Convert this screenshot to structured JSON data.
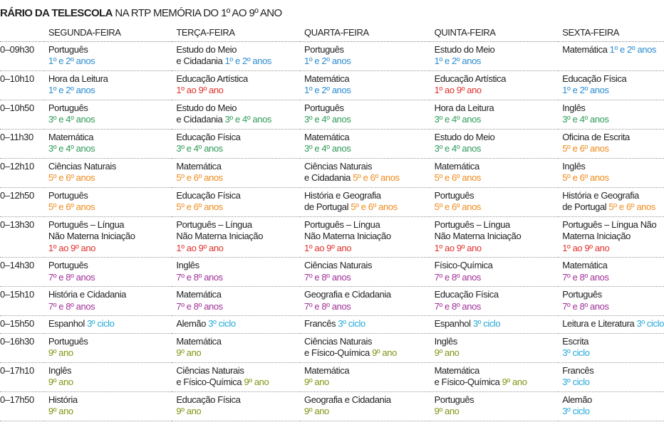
{
  "header": {
    "title_bold": "RÁRIO DA TELESCOLA",
    "title_rest": "NA RTP MEMÓRIA DO 1º AO 9º ANO"
  },
  "palette": {
    "blue": "#2a8bd0",
    "red": "#e0302a",
    "green": "#2e9a5a",
    "orange": "#ef8a1a",
    "purple": "#a0309a",
    "cyan": "#22a8d8",
    "olive": "#7f9410"
  },
  "table": {
    "columns": [
      "SEGUNDA-FEIRA",
      "TERÇA-FEIRA",
      "QUARTA-FEIRA",
      "QUINTA-FEIRA",
      "SEXTA-FEIRA"
    ],
    "rows": [
      {
        "time": "0–09h30",
        "cells": [
          {
            "l": [
              "Português"
            ],
            "g": "1º e 2º anos",
            "c": "blue",
            "i": false
          },
          {
            "l": [
              "Estudo do Meio",
              "e Cidadania"
            ],
            "g": "1º e 2º anos",
            "c": "blue",
            "i": true
          },
          {
            "l": [
              "Português"
            ],
            "g": "1º e 2º anos",
            "c": "blue",
            "i": false
          },
          {
            "l": [
              "Estudo do Meio"
            ],
            "g": "1º e 2º anos",
            "c": "blue",
            "i": false
          },
          {
            "l": [
              "Matemática"
            ],
            "g": "1º e 2º anos",
            "c": "blue",
            "i": true
          }
        ]
      },
      {
        "time": "0–10h10",
        "cells": [
          {
            "l": [
              "Hora da Leitura"
            ],
            "g": "1º e 2º anos",
            "c": "blue",
            "i": false
          },
          {
            "l": [
              "Educação Artística"
            ],
            "g": "1º ao 9º ano",
            "c": "red",
            "i": false
          },
          {
            "l": [
              "Matemática"
            ],
            "g": "1º e 2º anos",
            "c": "blue",
            "i": false
          },
          {
            "l": [
              "Educação Artística"
            ],
            "g": "1º ao 9º ano",
            "c": "red",
            "i": false
          },
          {
            "l": [
              "Educação Física"
            ],
            "g": "1º e 2º anos",
            "c": "blue",
            "i": false
          }
        ]
      },
      {
        "time": "0–10h50",
        "cells": [
          {
            "l": [
              "Português"
            ],
            "g": "3º e 4º anos",
            "c": "green",
            "i": false
          },
          {
            "l": [
              "Estudo do Meio",
              "e Cidadania"
            ],
            "g": "3º e 4º anos",
            "c": "green",
            "i": true
          },
          {
            "l": [
              "Português"
            ],
            "g": "3º e 4º anos",
            "c": "green",
            "i": false
          },
          {
            "l": [
              "Hora da Leitura"
            ],
            "g": "3º e 4º anos",
            "c": "green",
            "i": false
          },
          {
            "l": [
              "Inglês"
            ],
            "g": "3º e 4º anos",
            "c": "green",
            "i": false
          }
        ]
      },
      {
        "time": "0–11h30",
        "cells": [
          {
            "l": [
              "Matemática"
            ],
            "g": "3º e 4º anos",
            "c": "green",
            "i": false
          },
          {
            "l": [
              "Educação Física"
            ],
            "g": "3º e 4º anos",
            "c": "green",
            "i": false
          },
          {
            "l": [
              "Matemática"
            ],
            "g": "3º e 4º anos",
            "c": "green",
            "i": false
          },
          {
            "l": [
              "Estudo do Meio"
            ],
            "g": "3º e 4º anos",
            "c": "green",
            "i": false
          },
          {
            "l": [
              "Oficina de Escrita"
            ],
            "g": "5º e 6º anos",
            "c": "orange",
            "i": false
          }
        ]
      },
      {
        "time": "0–12h10",
        "cells": [
          {
            "l": [
              "Ciências Naturais"
            ],
            "g": "5º e 6º anos",
            "c": "orange",
            "i": false
          },
          {
            "l": [
              "Matemática"
            ],
            "g": "5º e 6º anos",
            "c": "orange",
            "i": false
          },
          {
            "l": [
              "Ciências Naturais",
              "e Cidadania"
            ],
            "g": "5º e 6º anos",
            "c": "orange",
            "i": true
          },
          {
            "l": [
              "Matemática"
            ],
            "g": "5º e 6º anos",
            "c": "orange",
            "i": false
          },
          {
            "l": [
              "Inglês"
            ],
            "g": "5º e 6º anos",
            "c": "orange",
            "i": false
          }
        ]
      },
      {
        "time": "0–12h50",
        "cells": [
          {
            "l": [
              "Português"
            ],
            "g": "5º e 6º anos",
            "c": "orange",
            "i": false
          },
          {
            "l": [
              "Educação Física"
            ],
            "g": "5º e 6º anos",
            "c": "orange",
            "i": false
          },
          {
            "l": [
              "História e Geografia",
              "de Portugal"
            ],
            "g": "5º e 6º anos",
            "c": "orange",
            "i": true
          },
          {
            "l": [
              "Português"
            ],
            "g": "5º e 6º anos",
            "c": "orange",
            "i": false
          },
          {
            "l": [
              "História e Geografia",
              "de Portugal"
            ],
            "g": "5º e 6º anos",
            "c": "orange",
            "i": true
          }
        ]
      },
      {
        "time": "0–13h30",
        "cells": [
          {
            "l": [
              "Português – Língua",
              "Não Materna Iniciação"
            ],
            "g": "1º ao 9º ano",
            "c": "red",
            "i": false
          },
          {
            "l": [
              "Português – Língua",
              "Não Materna Iniciação"
            ],
            "g": "1º ao 9º ano",
            "c": "red",
            "i": false
          },
          {
            "l": [
              "Português – Língua",
              "Não Materna Iniciação"
            ],
            "g": "1º ao 9º ano",
            "c": "red",
            "i": false
          },
          {
            "l": [
              "Português – Língua",
              "Não Materna Iniciação"
            ],
            "g": "1º ao 9º ano",
            "c": "red",
            "i": false
          },
          {
            "l": [
              "Português – Língua Não",
              "Materna Iniciação"
            ],
            "g": "1º ao 9º ano",
            "c": "red",
            "i": false
          }
        ]
      },
      {
        "time": "0–14h30",
        "cells": [
          {
            "l": [
              "Português"
            ],
            "g": "7º e 8º anos",
            "c": "purple",
            "i": false
          },
          {
            "l": [
              "Inglês"
            ],
            "g": "7º e 8º anos",
            "c": "purple",
            "i": false
          },
          {
            "l": [
              "Ciências Naturais"
            ],
            "g": "7º e 8º anos",
            "c": "purple",
            "i": false
          },
          {
            "l": [
              "Físico-Química"
            ],
            "g": "7º e 8º anos",
            "c": "purple",
            "i": false
          },
          {
            "l": [
              "Matemática"
            ],
            "g": "7º e 8º anos",
            "c": "purple",
            "i": false
          }
        ]
      },
      {
        "time": "0–15h10",
        "cells": [
          {
            "l": [
              "História e Cidadania"
            ],
            "g": "7º e 8º anos",
            "c": "purple",
            "i": false
          },
          {
            "l": [
              "Matemática"
            ],
            "g": "7º e 8º anos",
            "c": "purple",
            "i": false
          },
          {
            "l": [
              "Geografia e Cidadania"
            ],
            "g": "7º e 8º anos",
            "c": "purple",
            "i": false
          },
          {
            "l": [
              "Educação Física"
            ],
            "g": "7º e 8º anos",
            "c": "purple",
            "i": false
          },
          {
            "l": [
              "Português"
            ],
            "g": "7º e 8º anos",
            "c": "purple",
            "i": false
          }
        ]
      },
      {
        "time": "0–15h50",
        "cells": [
          {
            "l": [
              "Espanhol"
            ],
            "g": "3º ciclo",
            "c": "cyan",
            "i": true
          },
          {
            "l": [
              "Alemão"
            ],
            "g": "3º ciclo",
            "c": "cyan",
            "i": true
          },
          {
            "l": [
              "Francês"
            ],
            "g": "3º ciclo",
            "c": "cyan",
            "i": true
          },
          {
            "l": [
              "Espanhol"
            ],
            "g": "3º ciclo",
            "c": "cyan",
            "i": true
          },
          {
            "l": [
              "Leitura e Literatura"
            ],
            "g": "3º ciclo",
            "c": "cyan",
            "i": true
          }
        ]
      },
      {
        "time": "0–16h30",
        "cells": [
          {
            "l": [
              "Português"
            ],
            "g": "9º ano",
            "c": "olive",
            "i": false
          },
          {
            "l": [
              "Matemática"
            ],
            "g": "9º ano",
            "c": "olive",
            "i": false
          },
          {
            "l": [
              "Ciências Naturais",
              "e Físico-Química"
            ],
            "g": "9º ano",
            "c": "olive",
            "i": true
          },
          {
            "l": [
              "Inglês"
            ],
            "g": "9º ano",
            "c": "olive",
            "i": false
          },
          {
            "l": [
              "Escrita"
            ],
            "g": "3º ciclo",
            "c": "cyan",
            "i": false
          }
        ]
      },
      {
        "time": "0–17h10",
        "cells": [
          {
            "l": [
              "Inglês"
            ],
            "g": "9º ano",
            "c": "olive",
            "i": false
          },
          {
            "l": [
              "Ciências Naturais",
              "e Físico-Química"
            ],
            "g": "9º ano",
            "c": "olive",
            "i": true
          },
          {
            "l": [
              "Matemática"
            ],
            "g": "9º ano",
            "c": "olive",
            "i": false
          },
          {
            "l": [
              "Matemática",
              "e Físico-Química"
            ],
            "g": "9º ano",
            "c": "olive",
            "i": true
          },
          {
            "l": [
              "Francês"
            ],
            "g": "3º ciclo",
            "c": "cyan",
            "i": false
          }
        ]
      },
      {
        "time": "0–17h50",
        "cells": [
          {
            "l": [
              "História"
            ],
            "g": "9º ano",
            "c": "olive",
            "i": false
          },
          {
            "l": [
              "Educação Física"
            ],
            "g": "9º ano",
            "c": "olive",
            "i": false
          },
          {
            "l": [
              "Geografia e Cidadania"
            ],
            "g": "9º ano",
            "c": "olive",
            "i": false
          },
          {
            "l": [
              "Português"
            ],
            "g": "9º ano",
            "c": "olive",
            "i": false
          },
          {
            "l": [
              "Alemão"
            ],
            "g": "3º ciclo",
            "c": "cyan",
            "i": false
          }
        ]
      }
    ]
  }
}
